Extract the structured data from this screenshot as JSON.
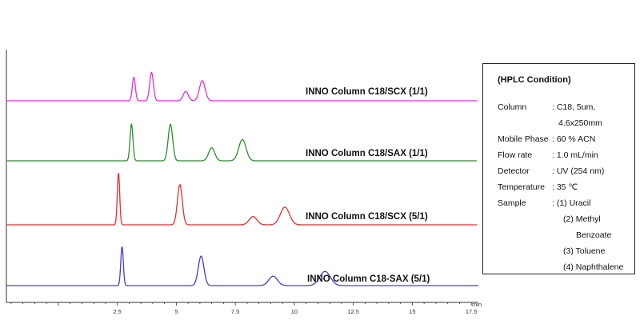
{
  "chart_data": {
    "type": "line",
    "title": "",
    "xlabel": "",
    "ylabel": "",
    "x_unit": "min",
    "xlim": [
      -2.2,
      17.8
    ],
    "grid": false,
    "x_ticks": [
      2.5,
      5,
      7.5,
      10,
      12.5,
      15,
      17.5
    ],
    "x_tick_labels": [
      "2.5",
      "5",
      "7.5",
      "10",
      "12.5",
      "15",
      "17.5"
    ],
    "traces": [
      {
        "label": "INNO Column C18/SCX (1/1)",
        "color": "#e030d8",
        "peaks": [
          {
            "rt": 3.2,
            "height": 1.0
          },
          {
            "rt": 3.95,
            "height": 1.2
          },
          {
            "rt": 5.4,
            "height": 0.4
          },
          {
            "rt": 6.1,
            "height": 0.85
          }
        ]
      },
      {
        "label": "INNO Column C18/SAX (1/1)",
        "color": "#2e8b2e",
        "peaks": [
          {
            "rt": 3.1,
            "height": 1.55
          },
          {
            "rt": 4.75,
            "height": 1.55
          },
          {
            "rt": 6.5,
            "height": 0.55
          },
          {
            "rt": 7.8,
            "height": 0.9
          }
        ]
      },
      {
        "label": "INNO Column C18/SCX (5/1)",
        "color": "#e03030",
        "peaks": [
          {
            "rt": 2.55,
            "height": 2.2
          },
          {
            "rt": 5.15,
            "height": 1.7
          },
          {
            "rt": 8.25,
            "height": 0.35
          },
          {
            "rt": 9.6,
            "height": 0.75
          }
        ]
      },
      {
        "label": "INNO Column C18-SAX (5/1)",
        "color": "#4a3ad8",
        "peaks": [
          {
            "rt": 2.7,
            "height": 1.65
          },
          {
            "rt": 6.05,
            "height": 1.25
          },
          {
            "rt": 9.1,
            "height": 0.4
          },
          {
            "rt": 11.3,
            "height": 0.6
          }
        ]
      }
    ]
  },
  "conditions": {
    "title": "(HPLC Condition)",
    "rows": [
      {
        "key": "Column",
        "value": ": C18, 5um,"
      },
      {
        "key": "",
        "value": "4.6x250mm"
      },
      {
        "key": "Mobile Phase",
        "value": ": 60 % ACN"
      },
      {
        "key": "Flow rate",
        "value": ": 1.0 mL/min"
      },
      {
        "key": "Detector",
        "value": ": UV (254 nm)"
      },
      {
        "key": "Temperature",
        "value": ": 35 ℃"
      },
      {
        "key": "Sample",
        "value": ": (1) Uracil"
      },
      {
        "key": "",
        "value": "(2) Methyl"
      },
      {
        "key": "",
        "value": "Benzoate"
      },
      {
        "key": "",
        "value": "(3) Toluene"
      },
      {
        "key": "",
        "value": "(4) Naphthalene"
      }
    ]
  }
}
